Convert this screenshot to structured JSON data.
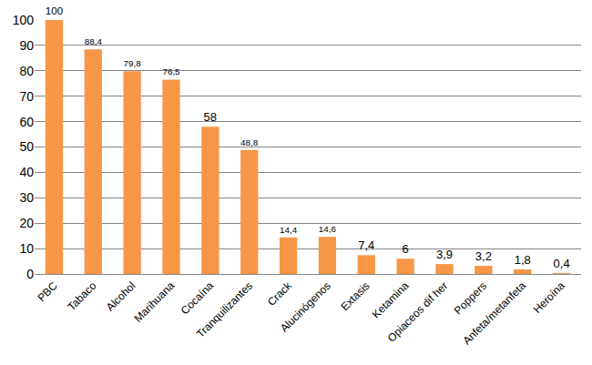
{
  "chart_data": {
    "type": "bar",
    "categories": [
      "PBC",
      "Tabaco",
      "Alcohol",
      "Marihuana",
      "Cocaína",
      "Tranquilizantes",
      "Crack",
      "Alucinógenos",
      "Extasis",
      "Ketamina",
      "Opiaceos dif her",
      "Poppers",
      "Anfeta/metanfeta",
      "Heroína"
    ],
    "values": [
      100,
      88.4,
      79.8,
      76.5,
      58,
      48.8,
      14.4,
      14.6,
      7.4,
      6,
      3.9,
      3.2,
      1.8,
      0.4
    ],
    "value_labels": [
      "100",
      "88,4",
      "79,8",
      "76,5",
      "58",
      "48,8",
      "14,4",
      "14,6",
      "7,4",
      "6",
      "3,9",
      "3,2",
      "1,8",
      "0,4"
    ],
    "data_labels": true,
    "color": "#f79646",
    "ylim": [
      0,
      100
    ],
    "yticks": [
      0,
      10,
      20,
      30,
      40,
      50,
      60,
      70,
      80,
      90,
      100
    ],
    "grid": true
  }
}
